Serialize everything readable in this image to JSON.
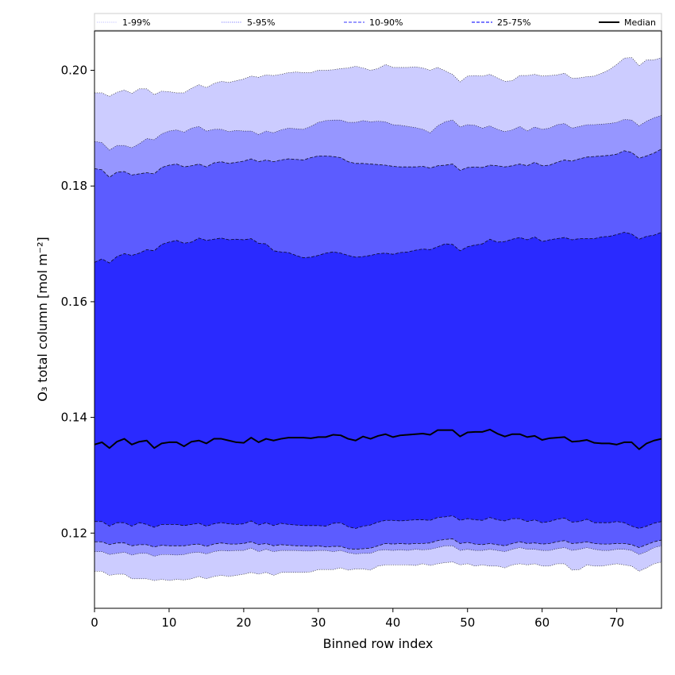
{
  "chart_data": {
    "type": "area",
    "xlabel": "Binned row index",
    "ylabel": "O₃ total column [mol m⁻²]",
    "xlim": [
      0,
      76
    ],
    "ylim": [
      0.107,
      0.2068
    ],
    "xticks": [
      0,
      10,
      20,
      30,
      40,
      50,
      60,
      70
    ],
    "yticks": [
      0.12,
      0.14,
      0.16,
      0.18,
      0.2
    ],
    "ytick_labels": [
      "0.12",
      "0.14",
      "0.16",
      "0.18",
      "0.20"
    ],
    "legend_position": "top, above plot (single row)",
    "colors": {
      "band_1_99": "#ccccff",
      "band_5_95": "#9696ff",
      "band_10_90": "#5c5cff",
      "band_25_75": "#2a2aff",
      "median": "#000000",
      "frame": "#000000"
    },
    "x": [
      0,
      1,
      2,
      3,
      4,
      5,
      6,
      7,
      8,
      9,
      10,
      11,
      12,
      13,
      14,
      15,
      16,
      17,
      18,
      19,
      20,
      21,
      22,
      23,
      24,
      25,
      26,
      27,
      28,
      29,
      30,
      31,
      32,
      33,
      34,
      35,
      36,
      37,
      38,
      39,
      40,
      41,
      42,
      43,
      44,
      45,
      46,
      47,
      48,
      49,
      50,
      51,
      52,
      53,
      54,
      55,
      56,
      57,
      58,
      59,
      60,
      61,
      62,
      63,
      64,
      65,
      66,
      67,
      68,
      69,
      70,
      71,
      72,
      73,
      74,
      75,
      76
    ],
    "series": [
      {
        "name": "1-99%",
        "style": "dotted",
        "lower": [
          0.1134,
          0.1134,
          0.1127,
          0.1129,
          0.1129,
          0.1121,
          0.1121,
          0.1121,
          0.1118,
          0.112,
          0.1118,
          0.112,
          0.1119,
          0.1121,
          0.1125,
          0.1121,
          0.1125,
          0.1127,
          0.1125,
          0.1127,
          0.1129,
          0.1132,
          0.1129,
          0.1132,
          0.1127,
          0.1132,
          0.1132,
          0.1132,
          0.1132,
          0.1133,
          0.1137,
          0.1137,
          0.1137,
          0.114,
          0.1136,
          0.1138,
          0.1138,
          0.1136,
          0.1143,
          0.1145,
          0.1145,
          0.1145,
          0.1145,
          0.1144,
          0.1147,
          0.1144,
          0.1147,
          0.1149,
          0.115,
          0.1145,
          0.1147,
          0.1143,
          0.1145,
          0.1143,
          0.1143,
          0.114,
          0.1145,
          0.1147,
          0.1145,
          0.1147,
          0.1143,
          0.1143,
          0.1147,
          0.1147,
          0.1136,
          0.1137,
          0.1145,
          0.1143,
          0.1143,
          0.1145,
          0.1147,
          0.1145,
          0.1143,
          0.1134,
          0.114,
          0.1147,
          0.115
        ],
        "upper": [
          0.1961,
          0.1961,
          0.1955,
          0.1962,
          0.1966,
          0.196,
          0.1968,
          0.1968,
          0.1958,
          0.1964,
          0.1963,
          0.1961,
          0.1961,
          0.1969,
          0.1975,
          0.197,
          0.1977,
          0.1981,
          0.1979,
          0.1982,
          0.1985,
          0.199,
          0.1988,
          0.1992,
          0.1991,
          0.1993,
          0.1996,
          0.1997,
          0.1996,
          0.1996,
          0.2,
          0.2,
          0.2001,
          0.2003,
          0.2004,
          0.2007,
          0.2004,
          0.2,
          0.2003,
          0.201,
          0.2005,
          0.2005,
          0.2005,
          0.2006,
          0.2004,
          0.2,
          0.2005,
          0.1999,
          0.1993,
          0.198,
          0.199,
          0.1991,
          0.199,
          0.1993,
          0.1987,
          0.1981,
          0.1982,
          0.1991,
          0.1991,
          0.1993,
          0.199,
          0.1991,
          0.1992,
          0.1995,
          0.1986,
          0.1987,
          0.1989,
          0.199,
          0.1995,
          0.2001,
          0.201,
          0.2021,
          0.2022,
          0.2008,
          0.2018,
          0.2018,
          0.2022
        ]
      },
      {
        "name": "5-95%",
        "style": "dotted",
        "lower": [
          0.1168,
          0.1168,
          0.1163,
          0.1165,
          0.1167,
          0.1162,
          0.1165,
          0.1165,
          0.116,
          0.1163,
          0.1163,
          0.1162,
          0.1163,
          0.1166,
          0.1167,
          0.1164,
          0.1168,
          0.117,
          0.1169,
          0.117,
          0.117,
          0.1174,
          0.1168,
          0.1172,
          0.1168,
          0.117,
          0.117,
          0.117,
          0.1169,
          0.1169,
          0.117,
          0.117,
          0.1168,
          0.117,
          0.1166,
          0.1164,
          0.1165,
          0.1165,
          0.117,
          0.1171,
          0.117,
          0.1171,
          0.117,
          0.1172,
          0.1171,
          0.1172,
          0.1175,
          0.1178,
          0.1178,
          0.117,
          0.1172,
          0.117,
          0.117,
          0.1172,
          0.117,
          0.1168,
          0.1172,
          0.1175,
          0.1172,
          0.1172,
          0.117,
          0.117,
          0.1173,
          0.1175,
          0.117,
          0.1172,
          0.1175,
          0.1172,
          0.117,
          0.117,
          0.1172,
          0.1172,
          0.117,
          0.1163,
          0.1168,
          0.1175,
          0.1178
        ],
        "upper": [
          0.1877,
          0.1875,
          0.1862,
          0.187,
          0.187,
          0.1866,
          0.1873,
          0.1882,
          0.188,
          0.189,
          0.1895,
          0.1897,
          0.1893,
          0.19,
          0.1903,
          0.1895,
          0.1898,
          0.1898,
          0.1894,
          0.1896,
          0.1895,
          0.1895,
          0.1889,
          0.1895,
          0.1892,
          0.1897,
          0.19,
          0.1899,
          0.1898,
          0.1903,
          0.191,
          0.1913,
          0.1914,
          0.1914,
          0.191,
          0.191,
          0.1913,
          0.1911,
          0.1912,
          0.1911,
          0.1906,
          0.1905,
          0.1903,
          0.1901,
          0.1898,
          0.1892,
          0.1904,
          0.1911,
          0.1914,
          0.1902,
          0.1906,
          0.1905,
          0.19,
          0.1904,
          0.1898,
          0.1894,
          0.1897,
          0.1903,
          0.1895,
          0.1902,
          0.1898,
          0.19,
          0.1906,
          0.1908,
          0.19,
          0.1903,
          0.1906,
          0.1906,
          0.1907,
          0.1908,
          0.191,
          0.1915,
          0.1914,
          0.1904,
          0.1912,
          0.1918,
          0.1922
        ]
      },
      {
        "name": "10-90%",
        "style": "dashed",
        "lower": [
          0.1185,
          0.1185,
          0.118,
          0.1183,
          0.1183,
          0.1178,
          0.118,
          0.118,
          0.1176,
          0.1179,
          0.1178,
          0.1178,
          0.1178,
          0.118,
          0.1181,
          0.1177,
          0.1181,
          0.1183,
          0.1181,
          0.1181,
          0.1182,
          0.1185,
          0.118,
          0.1182,
          0.1178,
          0.118,
          0.1179,
          0.1178,
          0.1178,
          0.1177,
          0.1178,
          0.1176,
          0.1177,
          0.1177,
          0.1173,
          0.1172,
          0.1173,
          0.1174,
          0.1178,
          0.1182,
          0.1181,
          0.1182,
          0.1181,
          0.1182,
          0.1182,
          0.1183,
          0.1187,
          0.1189,
          0.119,
          0.1182,
          0.1184,
          0.1181,
          0.118,
          0.1182,
          0.118,
          0.1178,
          0.1182,
          0.1185,
          0.1182,
          0.1183,
          0.1181,
          0.1182,
          0.1185,
          0.1187,
          0.1182,
          0.1183,
          0.1185,
          0.1182,
          0.1181,
          0.1181,
          0.1182,
          0.1182,
          0.118,
          0.1175,
          0.118,
          0.1185,
          0.1188
        ],
        "upper": [
          0.183,
          0.1828,
          0.1815,
          0.1824,
          0.1825,
          0.1819,
          0.1821,
          0.1823,
          0.1821,
          0.1832,
          0.1836,
          0.1838,
          0.1833,
          0.1835,
          0.1838,
          0.1833,
          0.184,
          0.1842,
          0.1839,
          0.1841,
          0.1843,
          0.1847,
          0.1842,
          0.1845,
          0.1842,
          0.1845,
          0.1847,
          0.1846,
          0.1845,
          0.1849,
          0.1852,
          0.1852,
          0.1851,
          0.1849,
          0.1842,
          0.1839,
          0.1839,
          0.1838,
          0.1837,
          0.1836,
          0.1834,
          0.1833,
          0.1833,
          0.1833,
          0.1834,
          0.1831,
          0.1835,
          0.1836,
          0.1838,
          0.1827,
          0.1832,
          0.1833,
          0.1832,
          0.1836,
          0.1835,
          0.1833,
          0.1835,
          0.1838,
          0.1835,
          0.1841,
          0.1835,
          0.1836,
          0.1841,
          0.1845,
          0.1843,
          0.1847,
          0.185,
          0.1851,
          0.1852,
          0.1853,
          0.1855,
          0.1861,
          0.1858,
          0.1848,
          0.1852,
          0.1857,
          0.1864
        ]
      },
      {
        "name": "25-75%",
        "style": "dashed",
        "lower": [
          0.122,
          0.122,
          0.1212,
          0.1218,
          0.1218,
          0.1212,
          0.1218,
          0.1215,
          0.121,
          0.1215,
          0.1215,
          0.1215,
          0.1213,
          0.1215,
          0.1217,
          0.1212,
          0.1216,
          0.1218,
          0.1216,
          0.1215,
          0.1216,
          0.1221,
          0.1214,
          0.1218,
          0.1213,
          0.1217,
          0.1215,
          0.1214,
          0.1213,
          0.1213,
          0.1213,
          0.1212,
          0.1217,
          0.1218,
          0.1211,
          0.1208,
          0.1212,
          0.1214,
          0.1219,
          0.1222,
          0.1222,
          0.1221,
          0.1222,
          0.1223,
          0.1223,
          0.1222,
          0.1227,
          0.1228,
          0.123,
          0.1222,
          0.1225,
          0.1223,
          0.1222,
          0.1227,
          0.1223,
          0.1221,
          0.1225,
          0.1225,
          0.122,
          0.1223,
          0.1218,
          0.122,
          0.1224,
          0.1226,
          0.1219,
          0.122,
          0.1224,
          0.1218,
          0.1218,
          0.1218,
          0.122,
          0.1218,
          0.1212,
          0.1208,
          0.1212,
          0.1217,
          0.122
        ],
        "upper": [
          0.1668,
          0.1674,
          0.1667,
          0.1678,
          0.1683,
          0.168,
          0.1684,
          0.169,
          0.1688,
          0.1699,
          0.1703,
          0.1706,
          0.1701,
          0.1703,
          0.171,
          0.1706,
          0.1708,
          0.171,
          0.1707,
          0.1708,
          0.1707,
          0.1709,
          0.1701,
          0.17,
          0.1688,
          0.1686,
          0.1685,
          0.168,
          0.1676,
          0.1677,
          0.168,
          0.1684,
          0.1686,
          0.1684,
          0.168,
          0.1677,
          0.1678,
          0.168,
          0.1683,
          0.1684,
          0.1682,
          0.1685,
          0.1686,
          0.1689,
          0.1691,
          0.169,
          0.1695,
          0.17,
          0.1699,
          0.1688,
          0.1695,
          0.1698,
          0.17,
          0.1708,
          0.1703,
          0.1704,
          0.1708,
          0.1711,
          0.1707,
          0.1712,
          0.1704,
          0.1707,
          0.1709,
          0.1711,
          0.1707,
          0.1709,
          0.1709,
          0.1709,
          0.1712,
          0.1713,
          0.1716,
          0.172,
          0.1717,
          0.1708,
          0.1713,
          0.1715,
          0.172
        ]
      },
      {
        "name": "Median",
        "style": "solid",
        "values": [
          0.1353,
          0.1357,
          0.1347,
          0.1358,
          0.1363,
          0.1353,
          0.1358,
          0.136,
          0.1347,
          0.1355,
          0.1357,
          0.1357,
          0.135,
          0.1358,
          0.136,
          0.1355,
          0.1363,
          0.1363,
          0.136,
          0.1357,
          0.1356,
          0.1365,
          0.1357,
          0.1363,
          0.136,
          0.1363,
          0.1365,
          0.1365,
          0.1365,
          0.1364,
          0.1366,
          0.1366,
          0.137,
          0.1369,
          0.1363,
          0.136,
          0.1367,
          0.1363,
          0.1368,
          0.1371,
          0.1366,
          0.1369,
          0.137,
          0.1371,
          0.1372,
          0.137,
          0.1378,
          0.1378,
          0.1378,
          0.1367,
          0.1374,
          0.1375,
          0.1375,
          0.1379,
          0.1372,
          0.1367,
          0.1371,
          0.1371,
          0.1366,
          0.1368,
          0.1361,
          0.1364,
          0.1365,
          0.1366,
          0.1358,
          0.1359,
          0.1361,
          0.1356,
          0.1355,
          0.1355,
          0.1353,
          0.1357,
          0.1357,
          0.1345,
          0.1355,
          0.136,
          0.1363
        ]
      }
    ]
  }
}
